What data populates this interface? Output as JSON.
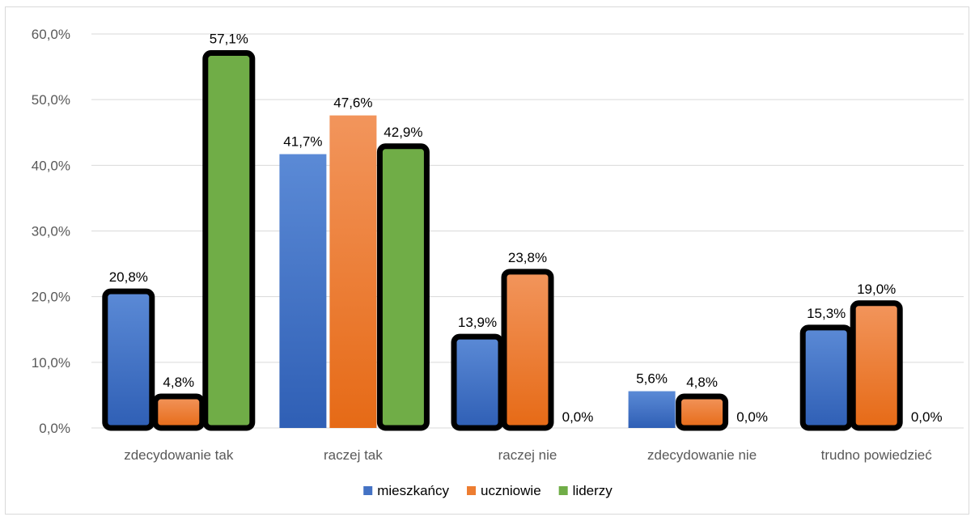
{
  "chart_data": {
    "type": "bar",
    "title": "",
    "xlabel": "",
    "ylabel": "",
    "ylim": [
      0,
      60
    ],
    "yticks": [
      "0,0%",
      "10,0%",
      "20,0%",
      "30,0%",
      "40,0%",
      "50,0%",
      "60,0%"
    ],
    "grid": true,
    "legend_position": "bottom",
    "categories": [
      "zdecydowanie tak",
      "raczej tak",
      "raczej nie",
      "zdecydowanie nie",
      "trudno powiedzieć"
    ],
    "series": [
      {
        "name": "mieszkańcy",
        "color": "#4472c4",
        "values": [
          20.8,
          41.7,
          13.9,
          5.6,
          15.3
        ],
        "labels": [
          "20,8%",
          "41,7%",
          "13,9%",
          "5,6%",
          "15,3%"
        ]
      },
      {
        "name": "uczniowie",
        "color": "#ed7d31",
        "values": [
          4.8,
          47.6,
          23.8,
          4.8,
          19.0
        ],
        "labels": [
          "4,8%",
          "47,6%",
          "23,8%",
          "4,8%",
          "19,0%"
        ]
      },
      {
        "name": "liderzy",
        "color": "#70ad47",
        "values": [
          57.1,
          42.9,
          0.0,
          0.0,
          0.0
        ],
        "labels": [
          "57,1%",
          "42,9%",
          "0,0%",
          "0,0%",
          "0,0%"
        ]
      }
    ],
    "highlighted": [
      [
        true,
        false,
        true,
        false,
        true
      ],
      [
        true,
        false,
        true,
        true,
        true
      ],
      [
        true,
        true,
        true,
        true,
        true
      ]
    ]
  }
}
